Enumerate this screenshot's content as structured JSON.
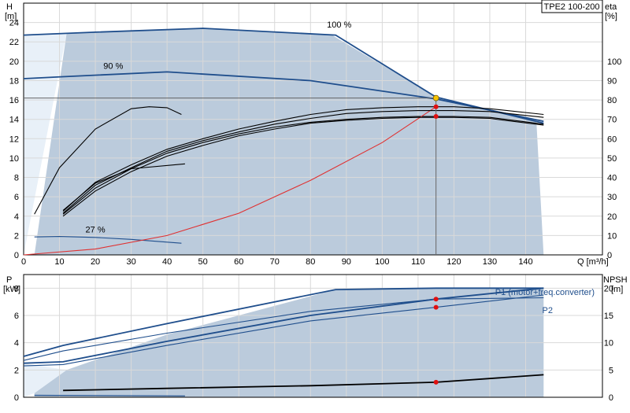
{
  "chart_data": [
    {
      "type": "line",
      "model_label": "TPE2 100-200",
      "xlabel": "Q [m³/h]",
      "xlim": [
        0,
        150
      ],
      "x_ticks": [
        0,
        10,
        20,
        30,
        40,
        50,
        60,
        70,
        80,
        90,
        100,
        110,
        120,
        130,
        140
      ],
      "ylabel_left": "H",
      "ylabel_left_unit": "[m]",
      "ylim_left": [
        0,
        26
      ],
      "y_ticks_left": [
        0,
        2,
        4,
        6,
        8,
        10,
        12,
        14,
        16,
        18,
        20,
        22,
        24
      ],
      "ylabel_right": "eta",
      "ylabel_right_unit": "[%]",
      "ylim_right": [
        0,
        130
      ],
      "y_ticks_right": [
        0,
        10,
        20,
        30,
        40,
        50,
        60,
        70,
        80,
        90,
        100
      ],
      "grid": true,
      "envelope": {
        "x": [
          3,
          12,
          50,
          86,
          115,
          143,
          145,
          0,
          0
        ],
        "y": [
          0,
          22.9,
          23.4,
          22.7,
          16.3,
          13.7,
          0,
          0,
          0
        ],
        "color": "#b7c8da"
      },
      "series": [
        {
          "name": "100 %",
          "color": "#1f4e8c",
          "x": [
            0,
            20,
            50,
            87,
            115,
            145
          ],
          "y": [
            22.7,
            23.0,
            23.4,
            22.7,
            16.3,
            13.6
          ]
        },
        {
          "name": "90 %",
          "color": "#1f4e8c",
          "x": [
            0,
            11,
            40,
            80,
            115,
            145
          ],
          "y": [
            18.2,
            18.4,
            18.9,
            18.0,
            16.1,
            13.8
          ]
        },
        {
          "name": "27 %",
          "color": "#1f4e8c",
          "x": [
            3,
            10,
            20,
            30,
            44
          ],
          "y": [
            1.85,
            1.9,
            1.8,
            1.6,
            1.2
          ]
        },
        {
          "name": "",
          "color": "#000000",
          "x": [
            11,
            20,
            30,
            40,
            50,
            60,
            70,
            80,
            90,
            100,
            110,
            120,
            130,
            145
          ],
          "y": [
            4.2,
            6.9,
            8.9,
            10.5,
            11.6,
            12.5,
            13.2,
            13.7,
            14.0,
            14.2,
            14.3,
            14.3,
            14.2,
            13.5
          ]
        },
        {
          "name": "",
          "color": "#000000",
          "x": [
            11,
            20,
            30,
            40,
            50,
            60,
            70,
            80,
            90,
            100,
            110,
            120,
            130,
            145
          ],
          "y": [
            4.5,
            7.5,
            9.3,
            10.9,
            12.0,
            13.0,
            13.8,
            14.5,
            15.0,
            15.2,
            15.3,
            15.3,
            15.1,
            14.5
          ]
        },
        {
          "name": "",
          "color": "#000000",
          "x": [
            3,
            10,
            20,
            30,
            35,
            40,
            44
          ],
          "y": [
            4.2,
            9.0,
            13.0,
            15.1,
            15.3,
            15.2,
            14.5
          ]
        },
        {
          "name": "",
          "color": "#e03030",
          "x": [
            0,
            20,
            40,
            60,
            80,
            100,
            115
          ],
          "y": [
            0,
            0.6,
            2.0,
            4.3,
            7.7,
            11.6,
            15.3
          ]
        }
      ],
      "duty_point": {
        "x": 115,
        "y": 16.2
      }
    },
    {
      "type": "line",
      "xlim": [
        0,
        150
      ],
      "ylabel_left": "P",
      "ylabel_left_unit": "[kW]",
      "ylim_left": [
        0,
        9
      ],
      "y_ticks_left": [
        0,
        2,
        4,
        6,
        8
      ],
      "ylabel_right": "NPSH",
      "ylabel_right_unit": "[m]",
      "ylim_right": [
        0,
        22.5
      ],
      "y_ticks_right": [
        0,
        5,
        10,
        15,
        20
      ],
      "grid": true,
      "envelope": {
        "x": [
          3,
          12,
          40,
          87,
          115,
          145,
          145,
          3
        ],
        "y": [
          0.3,
          2.0,
          4.6,
          7.9,
          8.0,
          8.0,
          0,
          0
        ],
        "color": "#b7c8da"
      },
      "series": [
        {
          "name": "P1 (motor+freq.converter)",
          "color": "#1f4e8c",
          "x": [
            0,
            11,
            40,
            87,
            115,
            145
          ],
          "y": [
            3.0,
            3.8,
            5.4,
            7.9,
            8.0,
            8.0
          ]
        },
        {
          "name": "P2",
          "color": "#1f4e8c",
          "x": [
            0,
            11,
            40,
            80,
            115,
            145
          ],
          "y": [
            2.7,
            3.4,
            4.7,
            6.3,
            7.2,
            7.3
          ]
        },
        {
          "name": "",
          "color": "#1f4e8c",
          "x": [
            0,
            11,
            40,
            80,
            115,
            145
          ],
          "y": [
            2.5,
            2.6,
            4.1,
            6.0,
            7.2,
            8.0
          ]
        },
        {
          "name": "",
          "color": "#1f4e8c",
          "x": [
            0,
            11,
            40,
            80,
            115,
            145
          ],
          "y": [
            2.3,
            2.4,
            3.8,
            5.6,
            6.6,
            7.5
          ]
        },
        {
          "name": "",
          "color": "#000000",
          "x": [
            11,
            40,
            80,
            115,
            145
          ],
          "y": [
            0.5,
            0.65,
            0.85,
            1.1,
            1.65
          ]
        },
        {
          "name": "",
          "color": "#1f4e8c",
          "x": [
            3,
            45
          ],
          "y": [
            0.15,
            0.1
          ]
        }
      ],
      "points": [
        {
          "x": 115,
          "y": 7.2
        },
        {
          "x": 115,
          "y": 6.6
        },
        {
          "x": 115,
          "y": 1.1
        }
      ]
    }
  ]
}
